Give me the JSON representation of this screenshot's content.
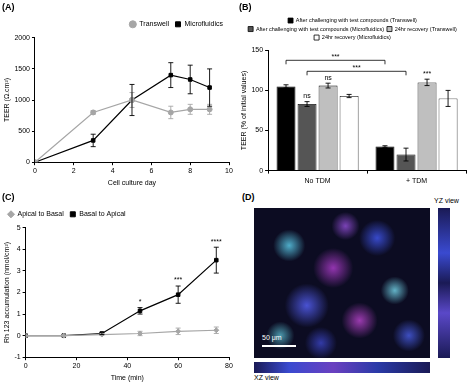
{
  "chart_data": [
    {
      "type": "line",
      "title": "(A)",
      "x_label": "Cell culture day",
      "y_label": "TEER (Ω.cm²)",
      "x": [
        0,
        3,
        5,
        7,
        8,
        9
      ],
      "series": [
        {
          "name": "Transwell",
          "color": "#a6a6a6",
          "marker": "circle",
          "values": [
            0,
            800,
            1000,
            800,
            850,
            850
          ],
          "errors": [
            0,
            30,
            120,
            100,
            80,
            80
          ]
        },
        {
          "name": "Microfluidics",
          "color": "#000000",
          "marker": "square",
          "values": [
            0,
            350,
            1000,
            1400,
            1330,
            1200
          ],
          "errors": [
            0,
            100,
            250,
            200,
            230,
            300
          ]
        }
      ],
      "xlim": [
        0,
        10
      ],
      "xticks": [
        0,
        2,
        4,
        6,
        8,
        10
      ],
      "ylim": [
        0,
        2000
      ],
      "yticks": [
        0,
        500,
        1000,
        1500,
        2000
      ],
      "grid": false,
      "legend": "top-right"
    },
    {
      "type": "bar",
      "title": "(B)",
      "y_label": "TEER (% of initial values)",
      "categories": [
        "No TDM",
        "+ TDM"
      ],
      "series": [
        {
          "name": "After challenging with test compounds (Transwell)",
          "color": "#000000",
          "values": [
            105,
            30
          ],
          "errors": [
            2,
            1
          ]
        },
        {
          "name": "After challenging with test compounds (Microfluidics)",
          "color": "#555555",
          "values": [
            83,
            20
          ],
          "errors": [
            3,
            8
          ]
        },
        {
          "name": "24hr recovery (Transwell)",
          "color": "#bfbfbf",
          "values": [
            106,
            110
          ],
          "errors": [
            3,
            4
          ]
        },
        {
          "name": "24hr recovery (Microfluidics)",
          "color": "#ffffff",
          "values": [
            93,
            90
          ],
          "errors": [
            2,
            10
          ]
        }
      ],
      "ylim": [
        0,
        150
      ],
      "yticks": [
        0,
        50,
        100,
        150
      ],
      "grid": false,
      "legend": "top",
      "annotations": [
        {
          "series": 1,
          "index": 0,
          "text": "ns"
        },
        {
          "series": 2,
          "index": 0,
          "text": "ns"
        },
        {
          "series": 2,
          "index": 1,
          "text": "***"
        }
      ],
      "brackets": [
        {
          "from": {
            "series": 0,
            "index": 0
          },
          "to": {
            "series": 0,
            "index": 1
          },
          "text": "***"
        },
        {
          "from": {
            "series": 1,
            "index": 0
          },
          "to": {
            "series": 1,
            "index": 1
          },
          "text": "***"
        }
      ]
    },
    {
      "type": "line",
      "title": "(C)",
      "x_label": "Time (min)",
      "y_label": "Rh 123 accumulation (nmol/cm²)",
      "x": [
        0,
        15,
        30,
        45,
        60,
        75
      ],
      "series": [
        {
          "name": "Apical to Basal",
          "color": "#a6a6a6",
          "marker": "diamond",
          "values": [
            0,
            0,
            0.05,
            0.1,
            0.2,
            0.25
          ],
          "errors": [
            0,
            0,
            0.02,
            0.1,
            0.15,
            0.15
          ]
        },
        {
          "name": "Basal to Apical",
          "color": "#000000",
          "marker": "square",
          "values": [
            0,
            0,
            0.1,
            1.15,
            1.9,
            3.5
          ],
          "errors": [
            0,
            0,
            0.05,
            0.15,
            0.4,
            0.6
          ]
        }
      ],
      "xlim": [
        0,
        80
      ],
      "xticks": [
        0,
        20,
        40,
        60,
        80
      ],
      "ylim": [
        -1,
        5
      ],
      "yticks": [
        -1,
        0,
        1,
        2,
        3,
        4,
        5
      ],
      "grid": false,
      "legend": "top-left",
      "annotations": [
        {
          "series": 1,
          "index": 3,
          "text": "*"
        },
        {
          "series": 1,
          "index": 4,
          "text": "***"
        },
        {
          "series": 1,
          "index": 5,
          "text": "****"
        }
      ]
    }
  ],
  "image_panel": {
    "title": "(D)",
    "scale_bar": "50 μm",
    "side_view": "YZ view",
    "bottom_view": "XZ view"
  }
}
